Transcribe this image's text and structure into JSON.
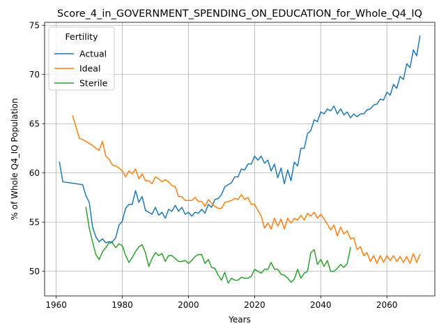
{
  "chart_data": {
    "type": "line",
    "title": "Score_4_in_GOVERNMENT_SPENDING_ON_EDUCATION_for_Whole_Q4_IQ",
    "xlabel": "Years",
    "ylabel": "% of Whole Q4_IQ Population",
    "xlim": [
      1956.5,
      2074.5
    ],
    "ylim": [
      47.5,
      75.3
    ],
    "xticks": [
      1960,
      1980,
      2000,
      2020,
      2040,
      2060
    ],
    "yticks": [
      50,
      55,
      60,
      65,
      70,
      75
    ],
    "grid": true,
    "legend": {
      "title": "Fertility",
      "placement": "upper-left"
    },
    "series": [
      {
        "name": "Actual",
        "color": "#1f77b4",
        "x": [
          1961,
          1962,
          1968,
          1969,
          1970,
          1971,
          1972,
          1973,
          1974,
          1975,
          1976,
          1977,
          1978,
          1979,
          1980,
          1981,
          1982,
          1983,
          1984,
          1985,
          1986,
          1987,
          1988,
          1989,
          1990,
          1991,
          1992,
          1993,
          1994,
          1995,
          1996,
          1997,
          1998,
          1999,
          2000,
          2001,
          2002,
          2003,
          2004,
          2005,
          2006,
          2007,
          2008,
          2009,
          2010,
          2011,
          2012,
          2013,
          2014,
          2015,
          2016,
          2017,
          2018,
          2019,
          2020,
          2021,
          2022,
          2023,
          2024,
          2025,
          2026,
          2027,
          2028,
          2029,
          2030,
          2031,
          2032,
          2033,
          2034,
          2035,
          2036,
          2037,
          2038,
          2039,
          2040,
          2041,
          2042,
          2043,
          2044,
          2045,
          2046,
          2047,
          2048,
          2049,
          2050,
          2051,
          2052,
          2053,
          2054,
          2055,
          2056,
          2057,
          2058,
          2059,
          2060,
          2061,
          2062,
          2063,
          2064,
          2065,
          2066,
          2067,
          2068,
          2069,
          2070
        ],
        "y": [
          61.1,
          59.1,
          58.8,
          57.7,
          57.0,
          54.5,
          53.5,
          53.0,
          53.3,
          52.9,
          53.0,
          53.0,
          53.4,
          54.7,
          55.1,
          56.4,
          56.8,
          56.8,
          58.2,
          57.0,
          57.6,
          56.2,
          56.0,
          55.8,
          56.5,
          55.7,
          56.0,
          55.4,
          56.3,
          56.1,
          56.7,
          56.1,
          56.5,
          55.8,
          56.0,
          55.6,
          56.0,
          55.9,
          56.3,
          55.9,
          56.8,
          56.5,
          57.3,
          57.4,
          57.8,
          58.6,
          58.8,
          59.0,
          59.6,
          59.6,
          60.4,
          60.3,
          60.9,
          60.9,
          61.7,
          61.3,
          61.7,
          61.0,
          61.3,
          60.2,
          60.9,
          59.5,
          60.5,
          58.9,
          60.3,
          59.2,
          61.1,
          60.7,
          62.5,
          62.5,
          64.0,
          64.3,
          65.4,
          65.2,
          66.2,
          66.0,
          66.5,
          66.3,
          66.8,
          66.0,
          66.5,
          65.9,
          66.2,
          65.6,
          66.0,
          65.7,
          66.0,
          66.0,
          66.4,
          66.5,
          66.9,
          67.0,
          67.5,
          67.4,
          68.2,
          67.9,
          69.0,
          68.6,
          69.8,
          69.5,
          71.1,
          70.7,
          72.5,
          71.9,
          73.9
        ]
      },
      {
        "name": "Ideal",
        "color": "#ff7f0e",
        "x": [
          1965,
          1967,
          1968,
          1969,
          1970,
          1971,
          1972,
          1973,
          1974,
          1975,
          1976,
          1977,
          1978,
          1979,
          1980,
          1981,
          1982,
          1983,
          1984,
          1985,
          1986,
          1987,
          1988,
          1989,
          1990,
          1991,
          1992,
          1993,
          1994,
          1995,
          1996,
          1997,
          1998,
          1999,
          2000,
          2001,
          2002,
          2003,
          2004,
          2005,
          2006,
          2007,
          2008,
          2009,
          2010,
          2011,
          2012,
          2013,
          2014,
          2015,
          2016,
          2017,
          2018,
          2019,
          2020,
          2021,
          2022,
          2023,
          2024,
          2025,
          2026,
          2027,
          2028,
          2029,
          2030,
          2031,
          2032,
          2033,
          2034,
          2035,
          2036,
          2037,
          2038,
          2039,
          2040,
          2041,
          2042,
          2043,
          2044,
          2045,
          2046,
          2047,
          2048,
          2049,
          2050,
          2051,
          2052,
          2053,
          2054,
          2055,
          2056,
          2057,
          2058,
          2059,
          2060,
          2061,
          2062,
          2063,
          2064,
          2065,
          2066,
          2067,
          2068,
          2069,
          2070
        ],
        "y": [
          65.8,
          63.5,
          63.4,
          63.2,
          63.0,
          62.8,
          62.5,
          62.3,
          63.2,
          61.7,
          61.4,
          60.8,
          60.7,
          60.5,
          60.2,
          59.6,
          60.2,
          59.9,
          60.4,
          59.4,
          59.9,
          59.2,
          59.2,
          58.9,
          59.6,
          59.4,
          59.1,
          59.3,
          59.1,
          58.7,
          58.6,
          57.6,
          57.6,
          57.2,
          57.2,
          57.2,
          57.5,
          57.1,
          57.1,
          56.6,
          57.3,
          56.9,
          56.6,
          56.4,
          56.4,
          57.0,
          57.1,
          57.2,
          57.4,
          57.3,
          57.8,
          57.3,
          57.5,
          56.8,
          56.8,
          56.2,
          55.6,
          54.4,
          54.9,
          54.3,
          55.4,
          54.6,
          55.3,
          54.3,
          55.4,
          54.9,
          55.4,
          55.2,
          55.7,
          55.2,
          55.9,
          55.6,
          56.0,
          55.4,
          55.8,
          55.3,
          54.8,
          54.2,
          54.7,
          53.6,
          54.5,
          53.8,
          54.1,
          53.3,
          53.4,
          52.2,
          52.5,
          51.6,
          51.9,
          51.0,
          51.6,
          50.8,
          51.6,
          50.9,
          51.6,
          51.1,
          51.6,
          51.0,
          51.5,
          50.9,
          51.5,
          50.8,
          51.8,
          50.9,
          51.7
        ]
      },
      {
        "name": "Sterile",
        "color": "#2ca02c",
        "x": [
          1969,
          1970,
          1971,
          1972,
          1973,
          1974,
          1975,
          1976,
          1977,
          1978,
          1979,
          1980,
          1981,
          1982,
          1983,
          1984,
          1985,
          1986,
          1987,
          1988,
          1989,
          1990,
          1991,
          1992,
          1993,
          1994,
          1995,
          1996,
          1997,
          1998,
          1999,
          2000,
          2001,
          2002,
          2003,
          2004,
          2005,
          2006,
          2007,
          2008,
          2009,
          2010,
          2011,
          2012,
          2013,
          2014,
          2015,
          2016,
          2017,
          2018,
          2019,
          2020,
          2021,
          2022,
          2023,
          2024,
          2025,
          2026,
          2027,
          2028,
          2029,
          2030,
          2031,
          2032,
          2033,
          2034,
          2035,
          2036,
          2037,
          2038,
          2039,
          2040,
          2041,
          2042,
          2043,
          2044,
          2045,
          2046,
          2047,
          2048,
          2049
        ],
        "y": [
          56.5,
          54.4,
          53.0,
          51.7,
          51.2,
          52.0,
          52.4,
          52.9,
          52.9,
          52.4,
          52.8,
          52.6,
          51.6,
          50.9,
          51.4,
          52.0,
          52.5,
          52.7,
          51.9,
          50.5,
          51.3,
          51.9,
          51.6,
          51.8,
          51.0,
          51.6,
          51.6,
          51.3,
          51.0,
          51.0,
          51.1,
          50.8,
          51.1,
          51.5,
          51.7,
          51.7,
          50.8,
          51.2,
          50.4,
          50.3,
          49.6,
          49.1,
          49.9,
          48.8,
          49.3,
          49.1,
          49.1,
          49.4,
          49.3,
          49.3,
          49.5,
          50.2,
          50.0,
          49.8,
          50.2,
          50.2,
          50.9,
          50.2,
          50.2,
          49.7,
          49.6,
          49.3,
          48.9,
          49.2,
          50.2,
          49.3,
          49.8,
          50.0,
          51.9,
          52.2,
          50.7,
          51.2,
          50.5,
          51.1,
          50.0,
          50.0,
          50.3,
          50.7,
          50.4,
          50.8,
          52.4
        ]
      }
    ]
  }
}
